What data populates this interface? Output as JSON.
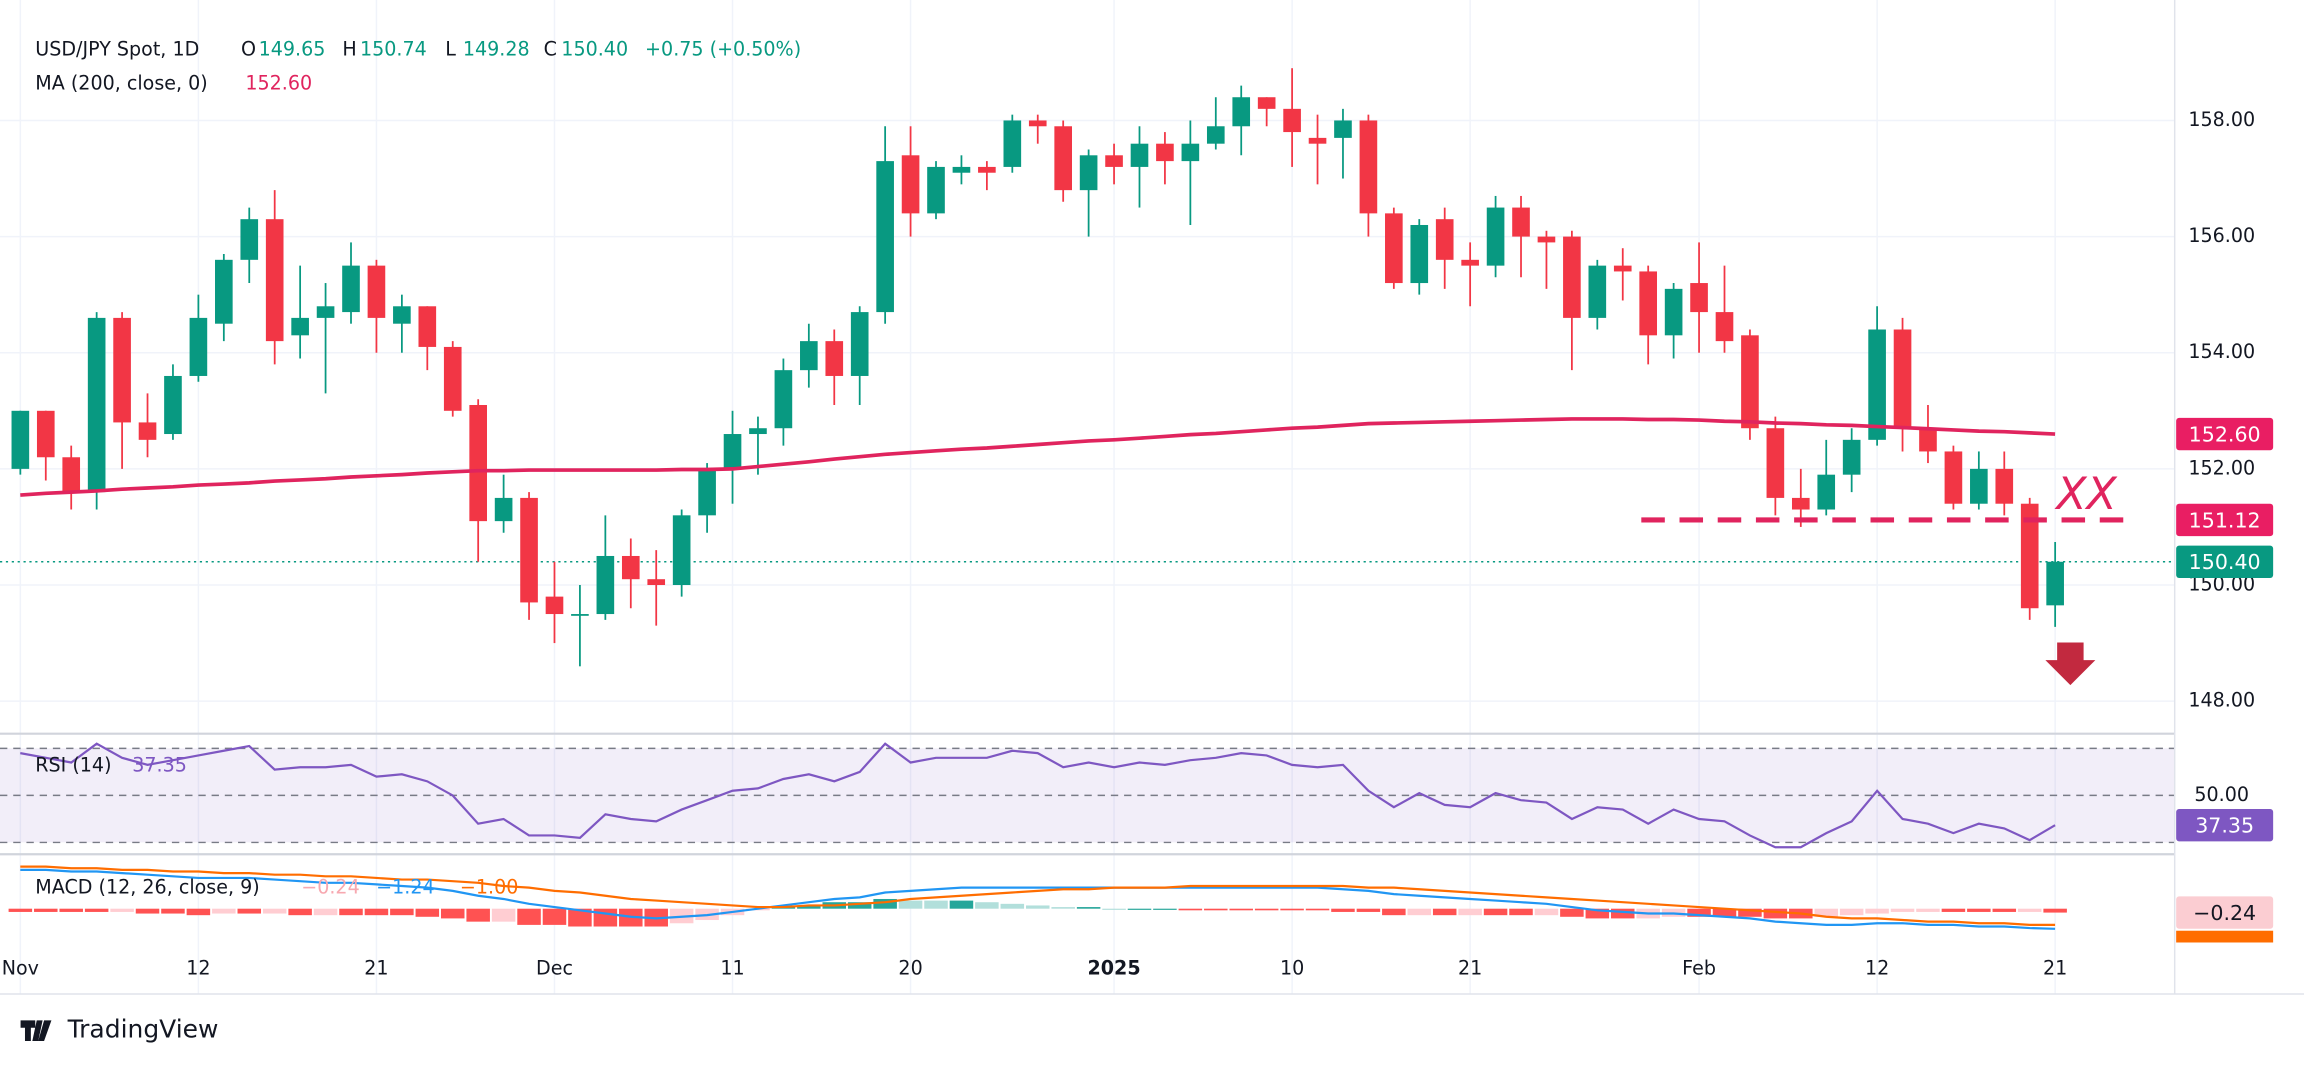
{
  "header": {
    "symbol": "USD/JPY Spot, 1D",
    "ohlc": [
      {
        "key": "O",
        "value": 149.65,
        "label": "149.65"
      },
      {
        "key": "H",
        "value": 150.74,
        "label": "150.74"
      },
      {
        "key": "L",
        "value": 149.28,
        "label": "149.28"
      },
      {
        "key": "C",
        "value": 150.4,
        "label": "150.40"
      }
    ],
    "change": "+0.75 (+0.50%)"
  },
  "chart_data": {
    "type": "candlestick",
    "up_color": "#089981",
    "down_color": "#f23645",
    "xlim": [
      -0.8,
      84.7
    ],
    "xticks": [
      {
        "value": 0,
        "label": "Nov"
      },
      {
        "value": 7,
        "label": "12"
      },
      {
        "value": 14,
        "label": "21"
      },
      {
        "value": 21,
        "label": "Dec"
      },
      {
        "value": 28,
        "label": "11"
      },
      {
        "value": 35,
        "label": "20"
      },
      {
        "value": 43,
        "label": "2025"
      },
      {
        "value": 50,
        "label": "10"
      },
      {
        "value": 57,
        "label": "21"
      },
      {
        "value": 66,
        "label": "Feb"
      },
      {
        "value": 73,
        "label": "12"
      },
      {
        "value": 80,
        "label": "21"
      }
    ],
    "ylim": [
      147.49,
      159.72
    ],
    "yticks": [
      {
        "value": 148,
        "label": "148.00"
      },
      {
        "value": 150,
        "label": "150.00"
      },
      {
        "value": 152,
        "label": "152.00"
      },
      {
        "value": 154,
        "label": "154.00"
      },
      {
        "value": 156,
        "label": "156.00"
      },
      {
        "value": 158,
        "label": "158.00"
      }
    ],
    "grid": true,
    "candles": {
      "open": [
        152.0,
        153.0,
        152.2,
        151.6,
        154.6,
        152.8,
        152.6,
        153.6,
        154.5,
        155.6,
        156.3,
        154.3,
        154.6,
        154.7,
        155.5,
        154.5,
        154.8,
        154.1,
        153.1,
        151.1,
        151.5,
        149.8,
        149.5,
        149.5,
        150.5,
        150.1,
        150.0,
        151.2,
        152.0,
        152.6,
        152.7,
        153.7,
        154.2,
        153.6,
        154.7,
        157.4,
        156.4,
        157.1,
        157.2,
        157.2,
        158.0,
        157.9,
        156.8,
        157.4,
        157.2,
        157.6,
        157.3,
        157.6,
        157.9,
        158.4,
        158.2,
        157.7,
        157.7,
        158.0,
        156.4,
        155.2,
        156.3,
        155.6,
        155.5,
        156.5,
        156.0,
        156.0,
        154.6,
        155.5,
        155.4,
        154.3,
        155.2,
        154.7,
        154.3,
        152.7,
        151.5,
        151.3,
        151.9,
        152.5,
        154.4,
        152.7,
        152.3,
        151.4,
        152.0,
        151.4,
        149.65
      ],
      "high": [
        153.0,
        153.0,
        152.4,
        154.7,
        154.7,
        153.3,
        153.8,
        155.0,
        155.7,
        156.5,
        156.8,
        155.5,
        155.2,
        155.9,
        155.6,
        155.0,
        154.8,
        154.2,
        153.2,
        151.9,
        151.6,
        150.4,
        150.0,
        151.2,
        150.8,
        150.6,
        151.3,
        152.1,
        153.0,
        152.9,
        153.9,
        154.5,
        154.4,
        154.8,
        157.9,
        157.9,
        157.3,
        157.4,
        157.3,
        158.1,
        158.1,
        158.0,
        157.5,
        157.6,
        157.9,
        157.8,
        158.0,
        158.4,
        158.6,
        158.4,
        158.9,
        158.1,
        158.2,
        158.1,
        156.5,
        156.3,
        156.5,
        155.9,
        156.7,
        156.7,
        156.1,
        156.1,
        155.6,
        155.8,
        155.5,
        155.2,
        155.9,
        155.5,
        154.4,
        152.9,
        152.0,
        152.5,
        152.7,
        154.8,
        154.6,
        153.1,
        152.4,
        152.3,
        152.3,
        151.5,
        150.74
      ],
      "low": [
        151.9,
        151.8,
        151.3,
        151.3,
        152.0,
        152.2,
        152.5,
        153.5,
        154.2,
        155.2,
        153.8,
        153.9,
        153.3,
        154.5,
        154.0,
        154.0,
        153.7,
        152.9,
        150.4,
        150.9,
        149.4,
        149.0,
        148.6,
        149.4,
        149.6,
        149.3,
        149.8,
        150.9,
        151.4,
        151.9,
        152.4,
        153.4,
        153.1,
        153.1,
        154.5,
        156.0,
        156.3,
        156.9,
        156.8,
        157.1,
        157.6,
        156.6,
        156.0,
        156.9,
        156.5,
        156.9,
        156.2,
        157.5,
        157.4,
        157.9,
        157.2,
        156.9,
        157.0,
        156.0,
        155.1,
        155.0,
        155.1,
        154.8,
        155.3,
        155.3,
        155.1,
        153.7,
        154.4,
        154.9,
        153.8,
        153.9,
        154.0,
        154.0,
        152.5,
        151.2,
        151.0,
        151.2,
        151.6,
        152.4,
        152.3,
        152.1,
        151.3,
        151.3,
        151.2,
        149.4,
        149.28
      ],
      "close": [
        153.0,
        152.2,
        151.6,
        154.6,
        152.8,
        152.5,
        153.6,
        154.6,
        155.6,
        156.3,
        154.2,
        154.6,
        154.8,
        155.5,
        154.6,
        154.8,
        154.1,
        153.0,
        151.1,
        151.5,
        149.7,
        149.5,
        149.5,
        150.5,
        150.1,
        150.0,
        151.2,
        152.0,
        152.6,
        152.7,
        153.7,
        154.2,
        153.6,
        154.7,
        157.3,
        156.4,
        157.2,
        157.2,
        157.1,
        158.0,
        157.9,
        156.8,
        157.4,
        157.2,
        157.6,
        157.3,
        157.6,
        157.9,
        158.4,
        158.2,
        157.8,
        157.6,
        158.0,
        156.4,
        155.2,
        156.2,
        155.6,
        155.5,
        156.5,
        156.0,
        155.9,
        154.6,
        155.5,
        155.4,
        154.3,
        155.1,
        154.7,
        154.2,
        152.7,
        151.5,
        151.3,
        151.9,
        152.5,
        154.4,
        152.7,
        152.3,
        151.4,
        152.0,
        151.4,
        149.6,
        150.4
      ]
    },
    "ma": {
      "label": "MA (200, close, 0)",
      "color": "#e0245e",
      "last": {
        "value": 152.6,
        "label": "152.60"
      },
      "values": [
        151.55,
        151.58,
        151.6,
        151.62,
        151.65,
        151.67,
        151.69,
        151.72,
        151.74,
        151.76,
        151.79,
        151.81,
        151.83,
        151.86,
        151.88,
        151.9,
        151.93,
        151.95,
        151.97,
        151.97,
        151.98,
        151.98,
        151.98,
        151.98,
        151.98,
        151.98,
        151.99,
        151.99,
        152.0,
        152.04,
        152.08,
        152.12,
        152.17,
        152.21,
        152.25,
        152.28,
        152.31,
        152.34,
        152.36,
        152.39,
        152.42,
        152.45,
        152.48,
        152.5,
        152.53,
        152.56,
        152.59,
        152.61,
        152.64,
        152.67,
        152.7,
        152.72,
        152.75,
        152.78,
        152.79,
        152.8,
        152.81,
        152.82,
        152.83,
        152.84,
        152.85,
        152.86,
        152.86,
        152.86,
        152.85,
        152.85,
        152.84,
        152.82,
        152.81,
        152.79,
        152.78,
        152.76,
        152.75,
        152.73,
        152.71,
        152.69,
        152.67,
        152.65,
        152.64,
        152.62,
        152.6
      ]
    },
    "last_price": {
      "value": 150.4,
      "label": "150.40"
    },
    "level": {
      "value": 151.12,
      "label": "151.12",
      "annotation": "XX",
      "color": "#e0245e"
    },
    "rsi": {
      "label": "RSI (14)",
      "color": "#7e57c2",
      "current": {
        "value": 37.35,
        "label": "37.35"
      },
      "ylim": [
        25.6,
        75.6
      ],
      "yticks": [
        {
          "value": 50,
          "label": "50.00"
        }
      ],
      "bands": [
        30,
        70
      ],
      "values": [
        68,
        66,
        64,
        72,
        66,
        63,
        65,
        67,
        69,
        71,
        61,
        62,
        62,
        63,
        58,
        59,
        56,
        50,
        38,
        40,
        33,
        33,
        32,
        42,
        40,
        39,
        44,
        48,
        52,
        53,
        57,
        59,
        56,
        60,
        72,
        64,
        66,
        66,
        66,
        69,
        68,
        62,
        64,
        62,
        64,
        63,
        65,
        66,
        68,
        67,
        63,
        62,
        63,
        52,
        45,
        51,
        46,
        45,
        51,
        48,
        47,
        40,
        45,
        44,
        38,
        44,
        40,
        39,
        33,
        28,
        28,
        34,
        39,
        52,
        40,
        38,
        34,
        38,
        36,
        31,
        37.35
      ]
    },
    "macd": {
      "label": "MACD (12, 26, close, 9)",
      "macd_color": "#2196f3",
      "signal_color": "#ff6d00",
      "hist_colors": [
        "#26a69a",
        "#b2dfdb",
        "#ff5252",
        "#ffcdd2"
      ],
      "legend_values": [
        {
          "value": -0.24,
          "label": "−0.24"
        },
        {
          "value": -1.24,
          "label": "−1.24"
        },
        {
          "value": -1.0,
          "label": "−1.00"
        }
      ],
      "ylim": [
        -2.45,
        3.27
      ],
      "macd": [
        2.4,
        2.4,
        2.3,
        2.3,
        2.2,
        2.1,
        2.0,
        1.9,
        1.9,
        1.9,
        1.8,
        1.7,
        1.6,
        1.6,
        1.5,
        1.4,
        1.3,
        1.1,
        0.8,
        0.6,
        0.3,
        0.1,
        -0.1,
        -0.3,
        -0.5,
        -0.6,
        -0.5,
        -0.4,
        -0.2,
        0.0,
        0.2,
        0.4,
        0.6,
        0.7,
        1.0,
        1.1,
        1.2,
        1.3,
        1.3,
        1.3,
        1.3,
        1.3,
        1.3,
        1.3,
        1.3,
        1.3,
        1.3,
        1.3,
        1.3,
        1.3,
        1.3,
        1.3,
        1.2,
        1.1,
        0.9,
        0.8,
        0.7,
        0.6,
        0.5,
        0.4,
        0.3,
        0.1,
        -0.1,
        -0.2,
        -0.3,
        -0.3,
        -0.4,
        -0.5,
        -0.6,
        -0.8,
        -0.9,
        -1.0,
        -1.0,
        -0.9,
        -0.9,
        -1.0,
        -1.0,
        -1.1,
        -1.1,
        -1.2,
        -1.24
      ],
      "signal": [
        2.6,
        2.6,
        2.5,
        2.5,
        2.4,
        2.4,
        2.3,
        2.3,
        2.2,
        2.2,
        2.1,
        2.1,
        2.0,
        2.0,
        1.9,
        1.8,
        1.8,
        1.7,
        1.6,
        1.4,
        1.3,
        1.1,
        1.0,
        0.8,
        0.6,
        0.5,
        0.4,
        0.3,
        0.2,
        0.1,
        0.1,
        0.2,
        0.2,
        0.3,
        0.4,
        0.6,
        0.7,
        0.8,
        0.9,
        1.0,
        1.1,
        1.2,
        1.2,
        1.3,
        1.3,
        1.3,
        1.4,
        1.4,
        1.4,
        1.4,
        1.4,
        1.4,
        1.4,
        1.3,
        1.3,
        1.2,
        1.1,
        1.0,
        0.9,
        0.8,
        0.7,
        0.6,
        0.5,
        0.4,
        0.3,
        0.2,
        0.1,
        0.0,
        -0.1,
        -0.2,
        -0.3,
        -0.5,
        -0.6,
        -0.6,
        -0.7,
        -0.8,
        -0.8,
        -0.9,
        -0.9,
        -1.0,
        -1.0
      ]
    }
  },
  "footer": {
    "brand": "TradingView"
  }
}
